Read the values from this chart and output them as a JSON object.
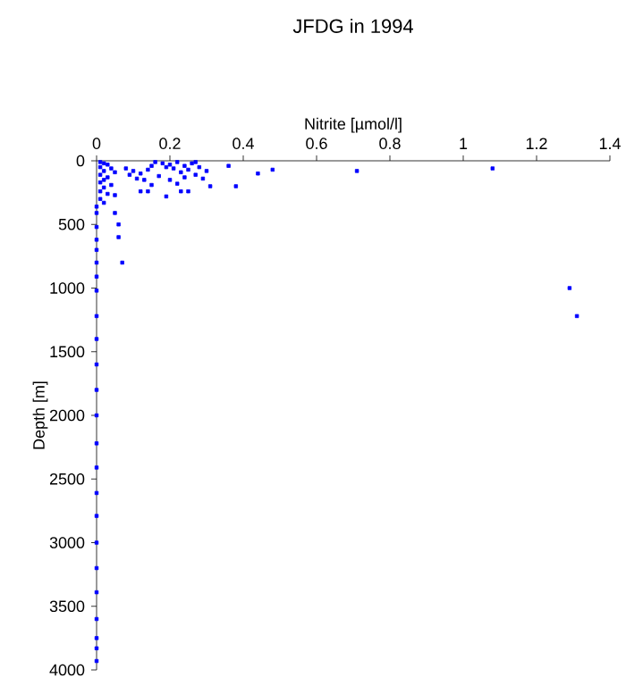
{
  "chart_data": {
    "type": "scatter",
    "title": "JFDG in 1994",
    "xlabel": "Nitrite [µmol/l]",
    "ylabel": "Depth [m]",
    "xlim": [
      0,
      1.4
    ],
    "xticks": [
      0,
      0.2,
      0.4,
      0.6,
      0.8,
      1,
      1.2,
      1.4
    ],
    "ylim": [
      4000,
      0
    ],
    "yticks": [
      0,
      500,
      1000,
      1500,
      2000,
      2500,
      3000,
      3500,
      4000
    ],
    "marker": "square",
    "grid": false,
    "series": [
      {
        "color": "#0000ff",
        "x": [
          0.01,
          0.02,
          0.03,
          0.01,
          0.04,
          0.02,
          0.05,
          0.01,
          0.03,
          0.02,
          0.01,
          0.04,
          0.02,
          0.01,
          0.03,
          0.05,
          0.01,
          0.02,
          0.0,
          0.08,
          0.1,
          0.12,
          0.14,
          0.15,
          0.16,
          0.18,
          0.19,
          0.2,
          0.21,
          0.22,
          0.23,
          0.24,
          0.25,
          0.26,
          0.27,
          0.28,
          0.29,
          0.3,
          0.17,
          0.2,
          0.22,
          0.13,
          0.15,
          0.24,
          0.27,
          0.09,
          0.11,
          0.19,
          0.14,
          0.12,
          0.23,
          0.25,
          0.31,
          0.36,
          0.38,
          0.44,
          0.48,
          0.71,
          1.08,
          1.29,
          1.31,
          0.0,
          0.05,
          0.0,
          0.06,
          0.0,
          0.06,
          0.0,
          0.0,
          0.07,
          0.0,
          0.0,
          0.0,
          0.0,
          0.0,
          0.0,
          0.0,
          0.0,
          0.0,
          0.0,
          0.0,
          0.0,
          0.0,
          0.0,
          0.0,
          0.0,
          0.0,
          0.0
        ],
        "values": [
          10,
          20,
          30,
          50,
          60,
          80,
          90,
          110,
          130,
          150,
          170,
          190,
          210,
          240,
          260,
          270,
          300,
          330,
          360,
          60,
          80,
          100,
          70,
          40,
          10,
          20,
          50,
          30,
          60,
          10,
          90,
          40,
          70,
          20,
          110,
          50,
          140,
          80,
          120,
          150,
          180,
          150,
          190,
          130,
          10,
          110,
          140,
          280,
          240,
          240,
          240,
          240,
          200,
          40,
          200,
          100,
          70,
          80,
          60,
          1000,
          1220,
          410,
          410,
          520,
          500,
          620,
          600,
          700,
          800,
          800,
          910,
          1020,
          1220,
          1400,
          1600,
          1800,
          2000,
          2220,
          2410,
          2610,
          2790,
          3000,
          3200,
          3390,
          3600,
          3750,
          3830,
          3930
        ]
      }
    ]
  }
}
